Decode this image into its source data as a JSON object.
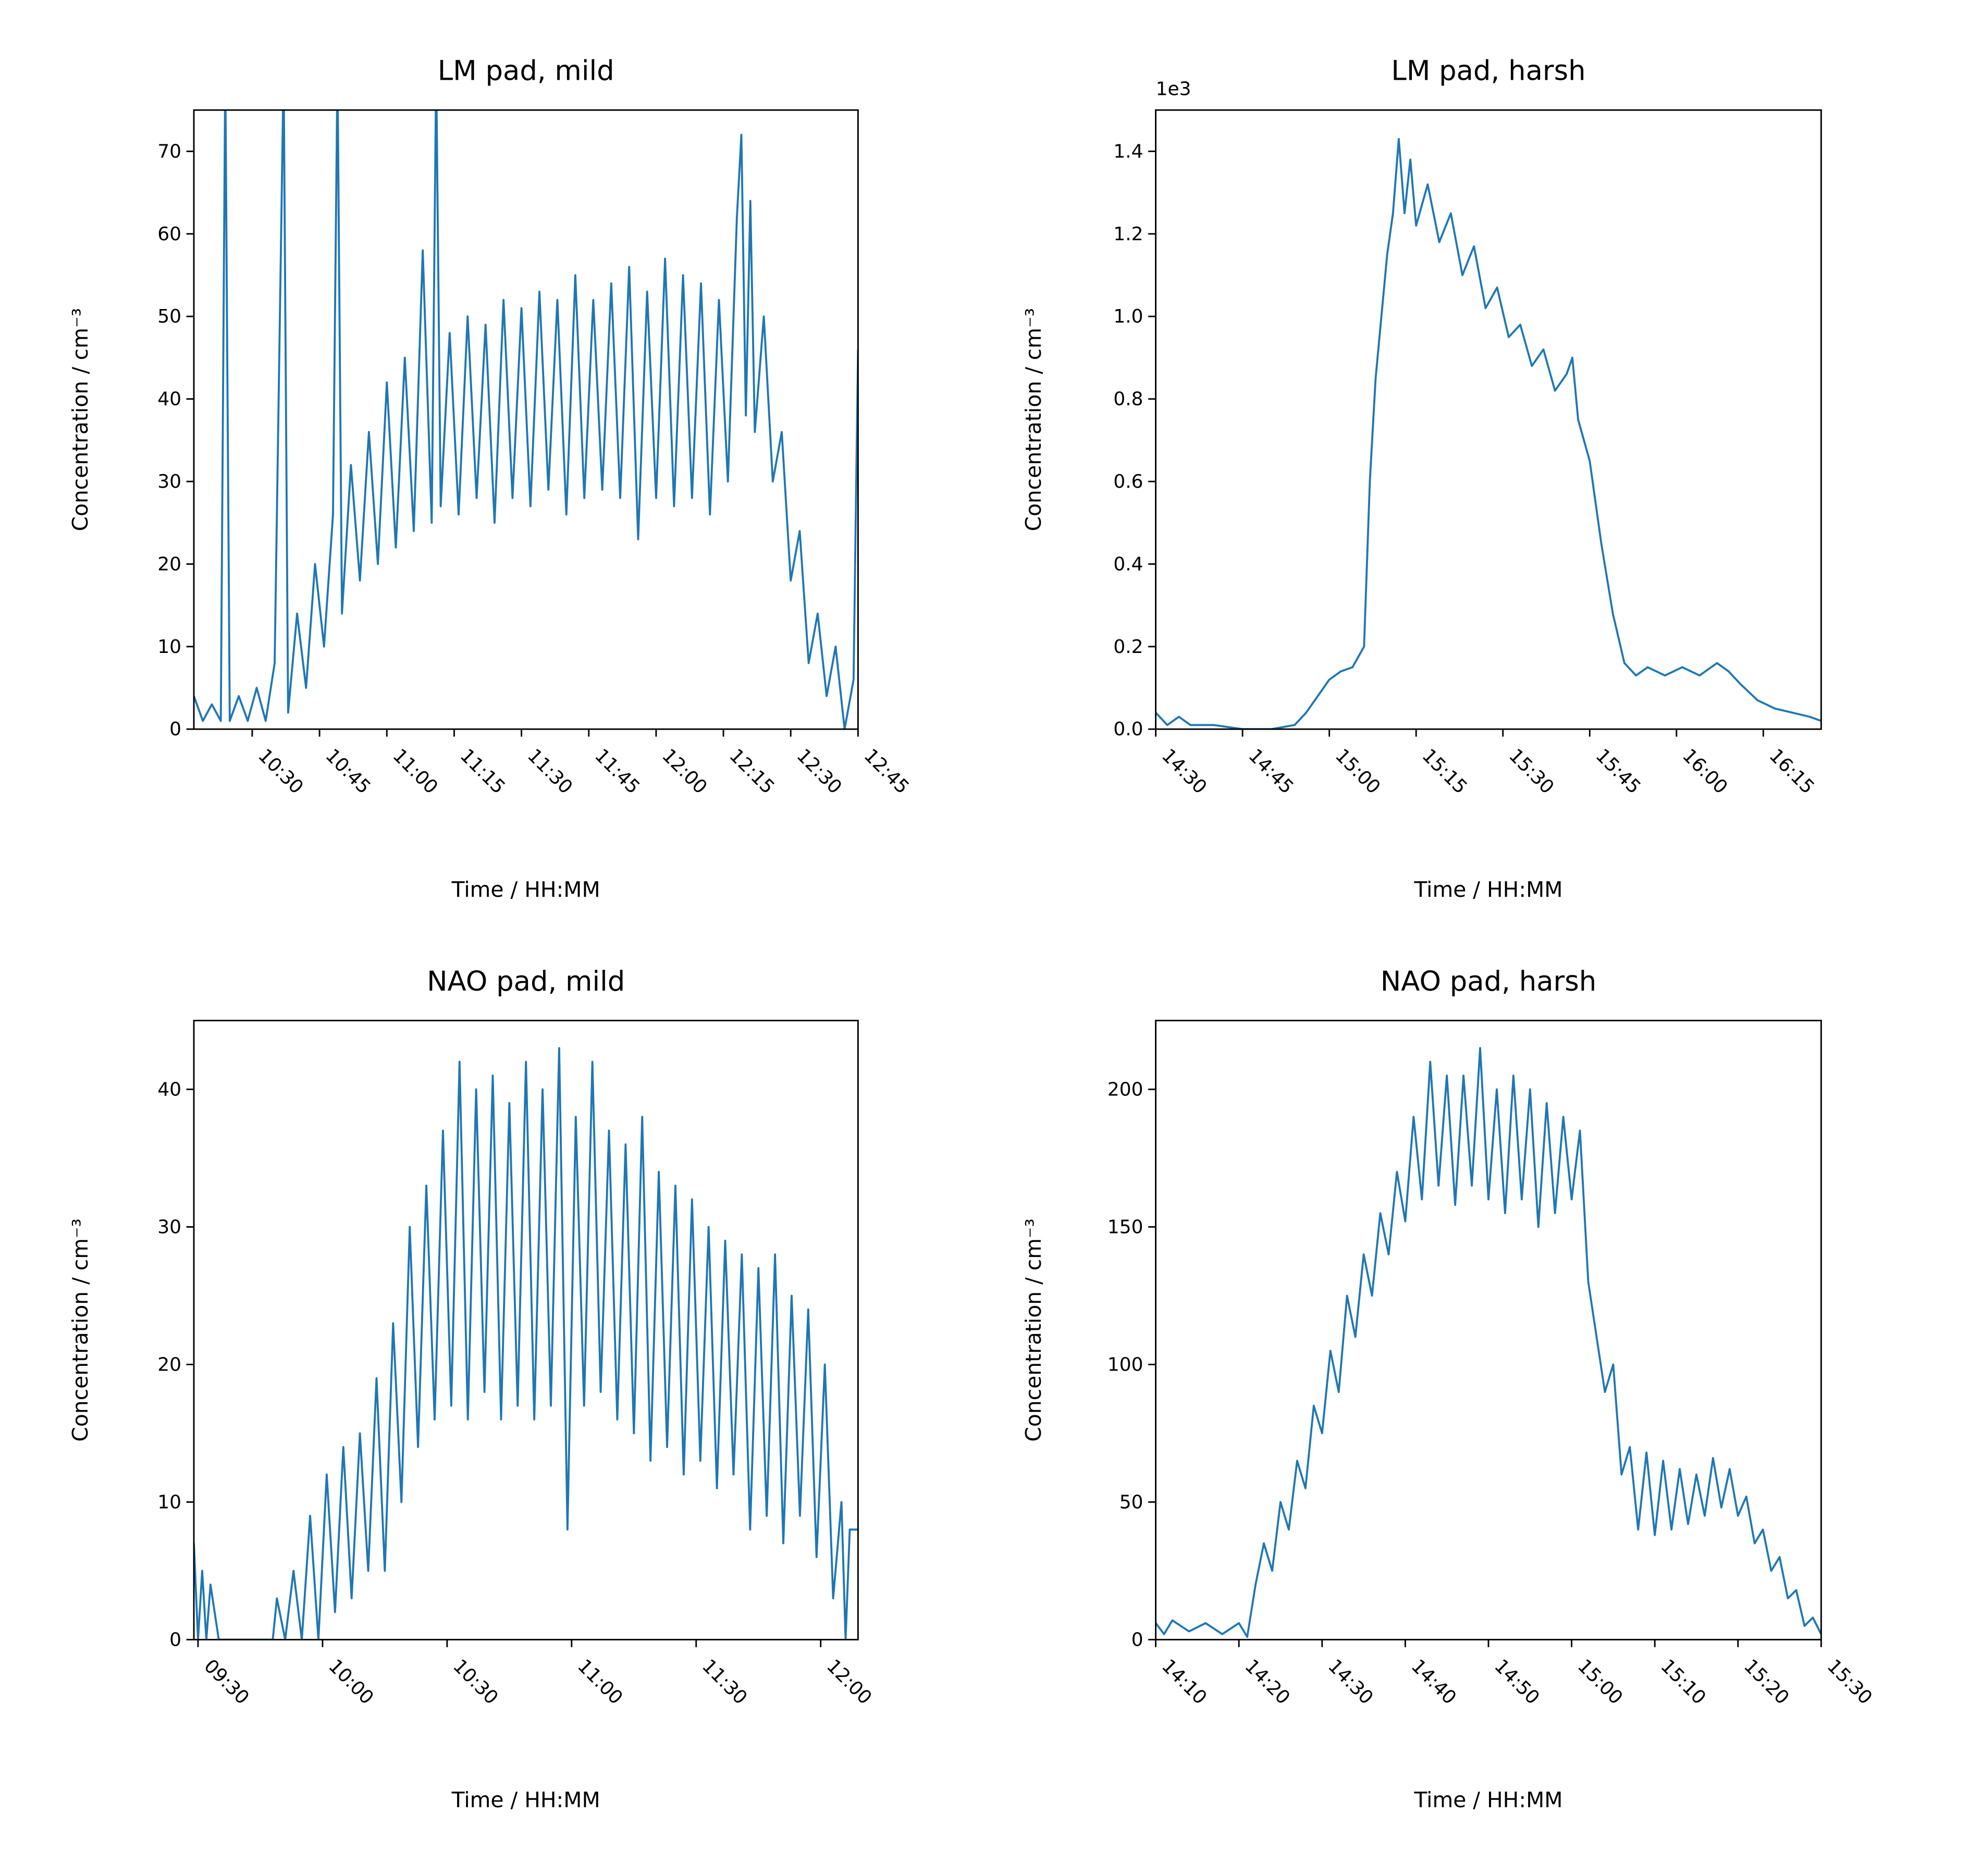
{
  "chart_data": [
    {
      "type": "line",
      "title": "LM pad, mild",
      "xlabel": "Time / HH:MM",
      "ylabel": "Concentration / cm⁻³",
      "color": "#1f77b4",
      "xlim": [
        "10:17",
        "12:45"
      ],
      "xticks": [
        "10:30",
        "10:45",
        "11:00",
        "11:15",
        "11:30",
        "11:45",
        "12:00",
        "12:15",
        "12:30",
        "12:45"
      ],
      "ylim": [
        0,
        75
      ],
      "yticks": [
        0,
        10,
        20,
        30,
        40,
        50,
        60,
        70
      ],
      "x": [
        "10:17",
        "10:19",
        "10:21",
        "10:23",
        "10:24",
        "10:25",
        "10:27",
        "10:29",
        "10:31",
        "10:33",
        "10:35",
        "10:37",
        "10:38",
        "10:40",
        "10:42",
        "10:44",
        "10:46",
        "10:48",
        "10:49",
        "10:50",
        "10:52",
        "10:54",
        "10:56",
        "10:58",
        "11:00",
        "11:02",
        "11:04",
        "11:06",
        "11:08",
        "11:10",
        "11:11",
        "11:12",
        "11:14",
        "11:16",
        "11:18",
        "11:20",
        "11:22",
        "11:24",
        "11:26",
        "11:28",
        "11:30",
        "11:32",
        "11:34",
        "11:36",
        "11:38",
        "11:40",
        "11:42",
        "11:44",
        "11:46",
        "11:48",
        "11:50",
        "11:52",
        "11:54",
        "11:56",
        "11:58",
        "12:00",
        "12:02",
        "12:04",
        "12:06",
        "12:08",
        "12:10",
        "12:12",
        "12:14",
        "12:16",
        "12:18",
        "12:19",
        "12:20",
        "12:21",
        "12:22",
        "12:24",
        "12:26",
        "12:28",
        "12:30",
        "12:32",
        "12:34",
        "12:36",
        "12:38",
        "12:40",
        "12:42",
        "12:44",
        "12:45"
      ],
      "values": [
        4,
        1,
        3,
        1,
        80,
        1,
        4,
        1,
        5,
        1,
        8,
        80,
        2,
        14,
        5,
        20,
        10,
        26,
        80,
        14,
        32,
        18,
        36,
        20,
        42,
        22,
        45,
        24,
        58,
        25,
        80,
        27,
        48,
        26,
        50,
        28,
        49,
        25,
        52,
        28,
        51,
        27,
        53,
        29,
        52,
        26,
        55,
        28,
        52,
        29,
        54,
        28,
        56,
        23,
        53,
        28,
        57,
        27,
        55,
        28,
        54,
        26,
        52,
        30,
        62,
        72,
        38,
        64,
        36,
        50,
        30,
        36,
        18,
        24,
        8,
        14,
        4,
        10,
        0,
        6,
        46
      ]
    },
    {
      "type": "line",
      "title": "LM pad, harsh",
      "xlabel": "Time / HH:MM",
      "ylabel": "Concentration / cm⁻³",
      "y_offset_label": "1e3",
      "color": "#1f77b4",
      "xlim": [
        "14:30",
        "16:25"
      ],
      "xticks": [
        "14:30",
        "14:45",
        "15:00",
        "15:15",
        "15:30",
        "15:45",
        "16:00",
        "16:15"
      ],
      "ylim": [
        0,
        1.5
      ],
      "yticks": [
        {
          "value": 0,
          "label": "0.0"
        },
        0.2,
        0.4,
        0.6,
        0.8,
        {
          "value": 1,
          "label": "1.0"
        },
        1.2,
        1.4
      ],
      "x": [
        "14:30",
        "14:32",
        "14:34",
        "14:36",
        "14:40",
        "14:45",
        "14:50",
        "14:54",
        "14:56",
        "14:58",
        "15:00",
        "15:02",
        "15:04",
        "15:06",
        "15:07",
        "15:08",
        "15:09",
        "15:10",
        "15:11",
        "15:12",
        "15:13",
        "15:14",
        "15:15",
        "15:17",
        "15:19",
        "15:21",
        "15:23",
        "15:25",
        "15:27",
        "15:29",
        "15:31",
        "15:33",
        "15:35",
        "15:37",
        "15:39",
        "15:41",
        "15:42",
        "15:43",
        "15:45",
        "15:47",
        "15:49",
        "15:51",
        "15:53",
        "15:55",
        "15:58",
        "16:01",
        "16:04",
        "16:07",
        "16:09",
        "16:11",
        "16:14",
        "16:17",
        "16:20",
        "16:23",
        "16:25"
      ],
      "values": [
        0.04,
        0.01,
        0.03,
        0.01,
        0.01,
        0.0,
        0.0,
        0.01,
        0.04,
        0.08,
        0.12,
        0.14,
        0.15,
        0.2,
        0.6,
        0.85,
        1.0,
        1.15,
        1.25,
        1.43,
        1.25,
        1.38,
        1.22,
        1.32,
        1.18,
        1.25,
        1.1,
        1.17,
        1.02,
        1.07,
        0.95,
        0.98,
        0.88,
        0.92,
        0.82,
        0.86,
        0.9,
        0.75,
        0.65,
        0.45,
        0.28,
        0.16,
        0.13,
        0.15,
        0.13,
        0.15,
        0.13,
        0.16,
        0.14,
        0.11,
        0.07,
        0.05,
        0.04,
        0.03,
        0.02
      ]
    },
    {
      "type": "line",
      "title": "NAO pad, mild",
      "xlabel": "Time / HH:MM",
      "ylabel": "Concentration / cm⁻³",
      "color": "#1f77b4",
      "xlim": [
        "09:29",
        "12:09"
      ],
      "xticks": [
        "09:30",
        "10:00",
        "10:30",
        "11:00",
        "11:30",
        "12:00"
      ],
      "ylim": [
        0,
        45
      ],
      "yticks": [
        0,
        10,
        20,
        30,
        40
      ],
      "x": [
        "09:29",
        "09:30",
        "09:31",
        "09:32",
        "09:33",
        "09:35",
        "09:45",
        "09:48",
        "09:49",
        "09:51",
        "09:53",
        "09:55",
        "09:57",
        "09:59",
        "10:01",
        "10:03",
        "10:05",
        "10:07",
        "10:09",
        "10:11",
        "10:13",
        "10:15",
        "10:17",
        "10:19",
        "10:21",
        "10:23",
        "10:25",
        "10:27",
        "10:29",
        "10:31",
        "10:33",
        "10:35",
        "10:37",
        "10:39",
        "10:41",
        "10:43",
        "10:45",
        "10:47",
        "10:49",
        "10:51",
        "10:53",
        "10:55",
        "10:57",
        "10:59",
        "11:01",
        "11:03",
        "11:05",
        "11:07",
        "11:09",
        "11:11",
        "11:13",
        "11:15",
        "11:17",
        "11:19",
        "11:21",
        "11:23",
        "11:25",
        "11:27",
        "11:29",
        "11:31",
        "11:33",
        "11:35",
        "11:37",
        "11:39",
        "11:41",
        "11:43",
        "11:45",
        "11:47",
        "11:49",
        "11:51",
        "11:53",
        "11:55",
        "11:57",
        "11:59",
        "12:01",
        "12:03",
        "12:05",
        "12:06",
        "12:07",
        "12:09"
      ],
      "values": [
        7,
        0,
        5,
        0,
        4,
        0,
        0,
        0,
        3,
        0,
        5,
        0,
        9,
        0,
        12,
        2,
        14,
        3,
        15,
        5,
        19,
        5,
        23,
        10,
        30,
        14,
        33,
        16,
        37,
        17,
        42,
        16,
        40,
        18,
        41,
        16,
        39,
        17,
        42,
        16,
        40,
        17,
        43,
        8,
        38,
        17,
        42,
        18,
        37,
        16,
        36,
        15,
        38,
        13,
        34,
        14,
        33,
        12,
        32,
        13,
        30,
        11,
        29,
        12,
        28,
        8,
        27,
        9,
        28,
        7,
        25,
        9,
        24,
        6,
        20,
        3,
        10,
        0,
        8,
        8
      ]
    },
    {
      "type": "line",
      "title": "NAO pad, harsh",
      "xlabel": "Time / HH:MM",
      "ylabel": "Concentration / cm⁻³",
      "color": "#1f77b4",
      "xlim": [
        "14:10",
        "15:30"
      ],
      "xticks": [
        "14:10",
        "14:20",
        "14:30",
        "14:40",
        "14:50",
        "15:00",
        "15:10",
        "15:20",
        "15:30"
      ],
      "ylim": [
        0,
        225
      ],
      "yticks": [
        0,
        50,
        100,
        150,
        200
      ],
      "x": [
        "14:10",
        "14:11",
        "14:12",
        "14:14",
        "14:16",
        "14:18",
        "14:20",
        "14:21",
        "14:22",
        "14:23",
        "14:24",
        "14:25",
        "14:26",
        "14:27",
        "14:28",
        "14:29",
        "14:30",
        "14:31",
        "14:32",
        "14:33",
        "14:34",
        "14:35",
        "14:36",
        "14:37",
        "14:38",
        "14:39",
        "14:40",
        "14:41",
        "14:42",
        "14:43",
        "14:44",
        "14:45",
        "14:46",
        "14:47",
        "14:48",
        "14:49",
        "14:50",
        "14:51",
        "14:52",
        "14:53",
        "14:54",
        "14:55",
        "14:56",
        "14:57",
        "14:58",
        "14:59",
        "15:00",
        "15:01",
        "15:02",
        "15:03",
        "15:04",
        "15:05",
        "15:06",
        "15:07",
        "15:08",
        "15:09",
        "15:10",
        "15:11",
        "15:12",
        "15:13",
        "15:14",
        "15:15",
        "15:16",
        "15:17",
        "15:18",
        "15:19",
        "15:20",
        "15:21",
        "15:22",
        "15:23",
        "15:24",
        "15:25",
        "15:26",
        "15:27",
        "15:28",
        "15:29",
        "15:30"
      ],
      "values": [
        6,
        2,
        7,
        3,
        6,
        2,
        6,
        1,
        20,
        35,
        25,
        50,
        40,
        65,
        55,
        85,
        75,
        105,
        90,
        125,
        110,
        140,
        125,
        155,
        140,
        170,
        152,
        190,
        160,
        210,
        165,
        205,
        158,
        205,
        165,
        215,
        160,
        200,
        155,
        205,
        160,
        200,
        150,
        195,
        155,
        190,
        160,
        185,
        130,
        110,
        90,
        100,
        60,
        70,
        40,
        68,
        38,
        65,
        40,
        62,
        42,
        60,
        45,
        66,
        48,
        62,
        45,
        52,
        35,
        40,
        25,
        30,
        15,
        18,
        5,
        8,
        2
      ]
    }
  ]
}
